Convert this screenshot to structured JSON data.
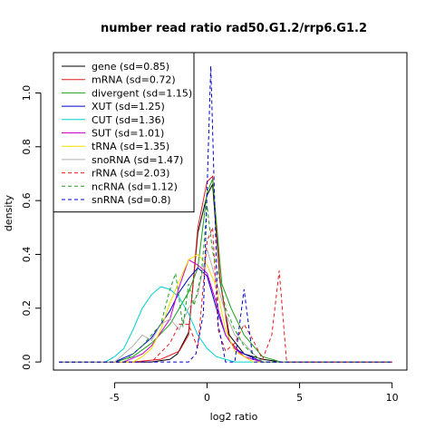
{
  "chart_data": {
    "type": "line",
    "title": "number read ratio rad50.G1.2/rrp6.G1.2",
    "xlabel": "log2 ratio",
    "ylabel": "density",
    "xlim": [
      -8.3,
      10.8
    ],
    "ylim": [
      -0.03,
      1.15
    ],
    "x_ticks": [
      -5,
      0,
      5,
      10
    ],
    "x_tick_labels": [
      "-5",
      "0",
      "5",
      "10"
    ],
    "y_ticks": [
      0.0,
      0.2,
      0.4,
      0.6,
      0.8,
      1.0
    ],
    "y_tick_labels": [
      "0.0",
      "0.2",
      "0.4",
      "0.6",
      "0.8",
      "1.0"
    ],
    "grid": false,
    "legend_position": "top-left",
    "series": [
      {
        "name": "gene (sd=0.85)",
        "color": "#000000",
        "dash": "solid",
        "x": [
          -8,
          -4.6,
          -3,
          -2,
          -1.6,
          -1,
          -0.5,
          0,
          0.3,
          0.7,
          1.2,
          2,
          3,
          4,
          10
        ],
        "y": [
          0,
          0,
          0,
          0.01,
          0.03,
          0.11,
          0.48,
          0.62,
          0.66,
          0.3,
          0.1,
          0.03,
          0.01,
          0,
          0
        ]
      },
      {
        "name": "mRNA (sd=0.72)",
        "color": "#e41a1c",
        "dash": "solid",
        "x": [
          -8,
          -4,
          -2.5,
          -1.5,
          -1,
          -0.5,
          0,
          0.3,
          0.7,
          1.2,
          2,
          3,
          10
        ],
        "y": [
          0,
          0,
          0.01,
          0.04,
          0.1,
          0.5,
          0.67,
          0.69,
          0.31,
          0.08,
          0.02,
          0,
          0
        ]
      },
      {
        "name": "divergent (sd=1.15)",
        "color": "#1a9e1a",
        "dash": "solid",
        "x": [
          -8,
          -5,
          -4,
          -3,
          -2,
          -1,
          -0.5,
          0,
          0.3,
          0.8,
          1.3,
          2,
          3,
          4,
          10
        ],
        "y": [
          0,
          0,
          0.02,
          0.07,
          0.14,
          0.26,
          0.35,
          0.63,
          0.68,
          0.29,
          0.2,
          0.1,
          0.02,
          0,
          0
        ]
      },
      {
        "name": "XUT (sd=1.25)",
        "color": "#0000cc",
        "dash": "solid",
        "x": [
          -8,
          -5,
          -4,
          -3,
          -2,
          -1.5,
          -1,
          -0.5,
          0,
          0.5,
          1,
          1.5,
          2,
          3,
          10
        ],
        "y": [
          0,
          0,
          0.03,
          0.09,
          0.19,
          0.26,
          0.31,
          0.35,
          0.32,
          0.2,
          0.1,
          0.05,
          0.03,
          0,
          0
        ]
      },
      {
        "name": "CUT (sd=1.36)",
        "color": "#00d0d0",
        "dash": "solid",
        "x": [
          -8,
          -5.5,
          -5,
          -4.5,
          -4,
          -3.5,
          -3,
          -2.5,
          -2,
          -1.5,
          -1,
          -0.5,
          0,
          0.5,
          1,
          1.5,
          2,
          10
        ],
        "y": [
          0,
          0,
          0.02,
          0.05,
          0.12,
          0.2,
          0.25,
          0.28,
          0.27,
          0.24,
          0.18,
          0.1,
          0.05,
          0.02,
          0.01,
          0,
          0,
          0
        ]
      },
      {
        "name": "SUT (sd=1.01)",
        "color": "#cc00cc",
        "dash": "solid",
        "x": [
          -8,
          -4.5,
          -3.5,
          -3,
          -2,
          -1.5,
          -1,
          -0.5,
          0,
          0.5,
          1,
          1.5,
          2,
          3,
          10
        ],
        "y": [
          0,
          0,
          0.03,
          0.06,
          0.16,
          0.28,
          0.38,
          0.36,
          0.33,
          0.22,
          0.1,
          0.05,
          0.02,
          0,
          0
        ]
      },
      {
        "name": "tRNA (sd=1.35)",
        "color": "#f0e000",
        "dash": "solid",
        "x": [
          -8,
          -4,
          -3.5,
          -3,
          -2.5,
          -2,
          -1.5,
          -1,
          -0.5,
          0,
          0.5,
          1,
          1.5,
          2.5,
          10
        ],
        "y": [
          0,
          0,
          0.02,
          0.05,
          0.12,
          0.22,
          0.3,
          0.38,
          0.4,
          0.36,
          0.28,
          0.12,
          0.04,
          0,
          0
        ]
      },
      {
        "name": "snoRNA (sd=1.47)",
        "color": "#b0b0b0",
        "dash": "solid",
        "x": [
          -8,
          -5,
          -4.5,
          -4,
          -3.5,
          -3,
          -2.5,
          -2,
          -1.5,
          -1,
          -0.5,
          0,
          0.5,
          1,
          1.5,
          2,
          2.5,
          3,
          10
        ],
        "y": [
          0,
          0,
          0.03,
          0.06,
          0.1,
          0.08,
          0.14,
          0.16,
          0.12,
          0.2,
          0.25,
          0.42,
          0.3,
          0.18,
          0.1,
          0.07,
          0.03,
          0,
          0
        ]
      },
      {
        "name": "rRNA (sd=2.03)",
        "color": "#e41a1c",
        "dash": "dashed",
        "x": [
          -8,
          -3,
          -2,
          -1.5,
          -1,
          -0.5,
          0,
          0.3,
          0.6,
          1,
          1.5,
          2,
          2.5,
          3,
          3.5,
          3.9,
          4.3,
          10
        ],
        "y": [
          0,
          0,
          0.07,
          0.14,
          0.14,
          0.05,
          0.45,
          0.5,
          0.12,
          0.04,
          0.07,
          0.14,
          0.08,
          0.01,
          0.1,
          0.34,
          0,
          0
        ]
      },
      {
        "name": "ncRNA (sd=1.12)",
        "color": "#1a9e1a",
        "dash": "dashed",
        "x": [
          -8,
          -4.5,
          -4,
          -3.5,
          -3,
          -2.5,
          -2,
          -1.7,
          -1.3,
          -1,
          -0.7,
          -0.3,
          0,
          0.3,
          0.7,
          1,
          1.5,
          2,
          2.5,
          3,
          10
        ],
        "y": [
          0,
          0,
          0.03,
          0.06,
          0.1,
          0.14,
          0.27,
          0.33,
          0.13,
          0.29,
          0.21,
          0.33,
          0.58,
          0.41,
          0.3,
          0.2,
          0.12,
          0.06,
          0.03,
          0,
          0
        ]
      },
      {
        "name": "snRNA (sd=0.8)",
        "color": "#0000cc",
        "dash": "dashed",
        "x": [
          -8,
          -1,
          -0.6,
          -0.2,
          0.2,
          0.6,
          1,
          1.5,
          2,
          2.5,
          3,
          10
        ],
        "y": [
          0,
          0,
          0.03,
          0.18,
          1.1,
          0.14,
          0,
          0,
          0.27,
          0,
          0,
          0
        ]
      }
    ]
  }
}
